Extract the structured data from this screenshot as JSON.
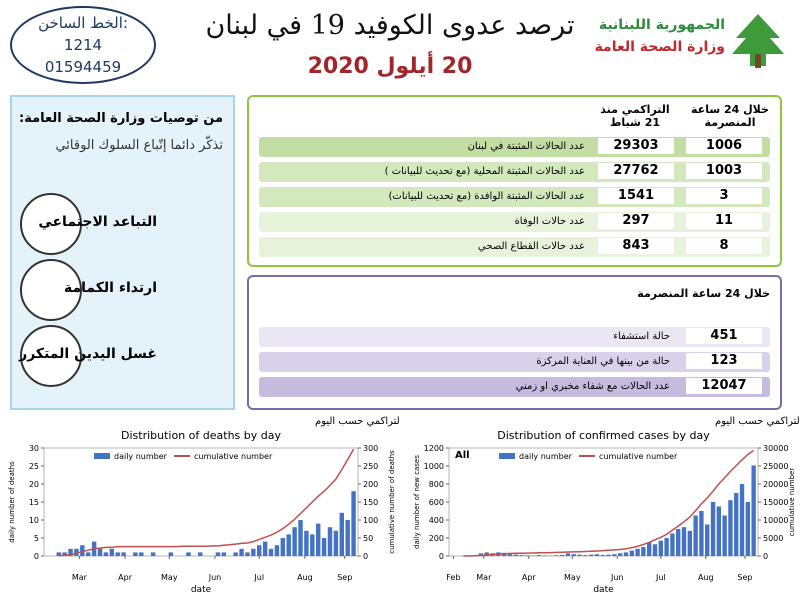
{
  "header": {
    "hotline_label": "الخط الساخن:",
    "hotline_1": "1214",
    "hotline_2": "01594459",
    "title": "ترصد عدوى الكوفيد 19 في لبنان",
    "date": "20 أيلول 2020",
    "ministry_1": "الجمهورية اللبنانية",
    "ministry_2": "وزارة الصحة العامة"
  },
  "recommendations": {
    "title": "من توصيات وزارة الصحة العامة:",
    "subtitle": "تذكّر دائما إتّباع السلوك الوقائي",
    "items": [
      "التباعد الاجتماعي",
      "ارتداء الكمامة",
      "غسل اليدين المتكرر"
    ]
  },
  "stats": {
    "col_24h": "خلال 24 ساعة المنصرمة",
    "col_cumulative": "التراكمي منذ 21 شباط",
    "rows": [
      {
        "label": "عدد الحالات المثبتة في لبنان",
        "h24": "1006",
        "cumulative": "29303"
      },
      {
        "label": "عدد الحالات المثبتة المحلية (مع تحديث للبيانات )",
        "h24": "1003",
        "cumulative": "27762"
      },
      {
        "label": "عدد الحالات المثبتة الوافدة (مع تحديث للبيانات)",
        "h24": "3",
        "cumulative": "1541"
      },
      {
        "label": "عدد حالات الوفاة",
        "h24": "11",
        "cumulative": "297"
      },
      {
        "label": "عدد حالات القطاع الصحي",
        "h24": "8",
        "cumulative": "843"
      }
    ]
  },
  "hospital": {
    "title": "خلال 24 ساعة المنصرمة",
    "rows": [
      {
        "label": "حالة استشفاء",
        "value": "451"
      },
      {
        "label": "حالة من بينها في العناية المركزة",
        "value": "123"
      },
      {
        "label": "عدد الحالات مع شفاء مخبري او زمني",
        "value": "12047"
      }
    ]
  },
  "chart_data": [
    {
      "type": "bar_line",
      "title_ar": "توزيع عدد حالات  الوفاة اليومي والتراكمي حسب اليوم",
      "title": "Distribution of deaths by day",
      "xlabel": "date",
      "ylabel": "daily number of deaths",
      "y2label": "cumulative number of deaths",
      "x": [
        10,
        14,
        18,
        22,
        26,
        30,
        34,
        38,
        42,
        46,
        50,
        54,
        58,
        62,
        66,
        70,
        74,
        78,
        82,
        86,
        90,
        94,
        98,
        102,
        106,
        110,
        114,
        118,
        122,
        126,
        130,
        134,
        138,
        142,
        146,
        150,
        154,
        158,
        162,
        166,
        170,
        174,
        178,
        182,
        186,
        190,
        194,
        198,
        202,
        206,
        210
      ],
      "xlim": [
        0,
        213
      ],
      "xticks": [
        {
          "value": 24,
          "label": "Mar"
        },
        {
          "value": 55,
          "label": "Apr"
        },
        {
          "value": 85,
          "label": "May"
        },
        {
          "value": 116,
          "label": "Jun"
        },
        {
          "value": 146,
          "label": "Jul"
        },
        {
          "value": 177,
          "label": "Aug"
        },
        {
          "value": 204,
          "label": "Sep"
        }
      ],
      "ylim": [
        0,
        30
      ],
      "yticks": [
        0,
        5,
        10,
        15,
        20,
        25,
        30
      ],
      "y2lim": [
        0,
        300
      ],
      "y2ticks": [
        0,
        50,
        100,
        150,
        200,
        250,
        300
      ],
      "series": [
        {
          "name": "daily number",
          "color": "#4472c4",
          "kind": "bar",
          "values": [
            1,
            1,
            2,
            2,
            3,
            1,
            4,
            2,
            1,
            2,
            1,
            1,
            0,
            1,
            1,
            0,
            1,
            0,
            0,
            1,
            0,
            0,
            1,
            0,
            1,
            0,
            0,
            1,
            1,
            0,
            1,
            2,
            1,
            2,
            3,
            4,
            2,
            3,
            5,
            6,
            8,
            10,
            7,
            6,
            9,
            5,
            8,
            7,
            12,
            10,
            18
          ]
        },
        {
          "name": "cumulative number",
          "color": "#c0504d",
          "kind": "line",
          "axis": "y2",
          "values": [
            1,
            2,
            4,
            8,
            12,
            16,
            20,
            22,
            24,
            24,
            26,
            26,
            26,
            26,
            26,
            26,
            26,
            26,
            26,
            26,
            26,
            27,
            27,
            27,
            27,
            27,
            28,
            28,
            30,
            31,
            33,
            35,
            36,
            40,
            46,
            52,
            58,
            66,
            76,
            88,
            102,
            118,
            134,
            150,
            166,
            180,
            196,
            214,
            240,
            268,
            297
          ]
        }
      ]
    },
    {
      "type": "bar_line",
      "title_ar": "توزيع عدد الحالات الجديدة اليومي والتراكمي حسب اليوم",
      "title": "Distribution of confirmed cases by day",
      "annotation": "All",
      "xlabel": "date",
      "ylabel": "daily number of new cases",
      "y2label": "cumulative number",
      "x": [
        10,
        14,
        18,
        22,
        26,
        30,
        34,
        38,
        42,
        46,
        50,
        54,
        58,
        62,
        66,
        70,
        74,
        78,
        82,
        86,
        90,
        94,
        98,
        102,
        106,
        110,
        114,
        118,
        122,
        126,
        130,
        134,
        138,
        142,
        146,
        150,
        154,
        158,
        162,
        166,
        170,
        174,
        178,
        182,
        186,
        190,
        194,
        198,
        202,
        206,
        210
      ],
      "xlim": [
        0,
        213
      ],
      "xticks": [
        {
          "value": 3,
          "label": "Feb"
        },
        {
          "value": 24,
          "label": "Mar"
        },
        {
          "value": 55,
          "label": "Apr"
        },
        {
          "value": 85,
          "label": "May"
        },
        {
          "value": 116,
          "label": "Jun"
        },
        {
          "value": 146,
          "label": "Jul"
        },
        {
          "value": 177,
          "label": "Aug"
        },
        {
          "value": 204,
          "label": "Sep"
        }
      ],
      "ylim": [
        0,
        1200
      ],
      "yticks": [
        0,
        200,
        400,
        600,
        800,
        1000,
        1200
      ],
      "y2lim": [
        0,
        30000
      ],
      "y2ticks": [
        0,
        5000,
        10000,
        15000,
        20000,
        25000,
        30000
      ],
      "series": [
        {
          "name": "daily number",
          "color": "#4472c4",
          "kind": "bar",
          "values": [
            2,
            5,
            10,
            30,
            40,
            30,
            40,
            35,
            20,
            15,
            10,
            8,
            5,
            10,
            6,
            4,
            8,
            12,
            30,
            20,
            15,
            10,
            15,
            20,
            12,
            15,
            20,
            30,
            40,
            60,
            80,
            100,
            150,
            130,
            170,
            200,
            250,
            300,
            320,
            280,
            450,
            500,
            350,
            600,
            550,
            450,
            620,
            700,
            800,
            600,
            1006
          ]
        },
        {
          "name": "cumulative number",
          "color": "#c0504d",
          "kind": "line",
          "axis": "y2",
          "values": [
            10,
            20,
            60,
            150,
            300,
            420,
            550,
            650,
            700,
            750,
            780,
            800,
            830,
            880,
            900,
            950,
            1000,
            1050,
            1100,
            1150,
            1200,
            1250,
            1300,
            1400,
            1500,
            1600,
            1700,
            1800,
            2000,
            2300,
            2700,
            3200,
            3800,
            4500,
            5200,
            6000,
            7200,
            8300,
            9500,
            10800,
            12600,
            14500,
            16100,
            18000,
            20000,
            21700,
            23500,
            25100,
            26700,
            28200,
            29303
          ]
        }
      ]
    }
  ]
}
